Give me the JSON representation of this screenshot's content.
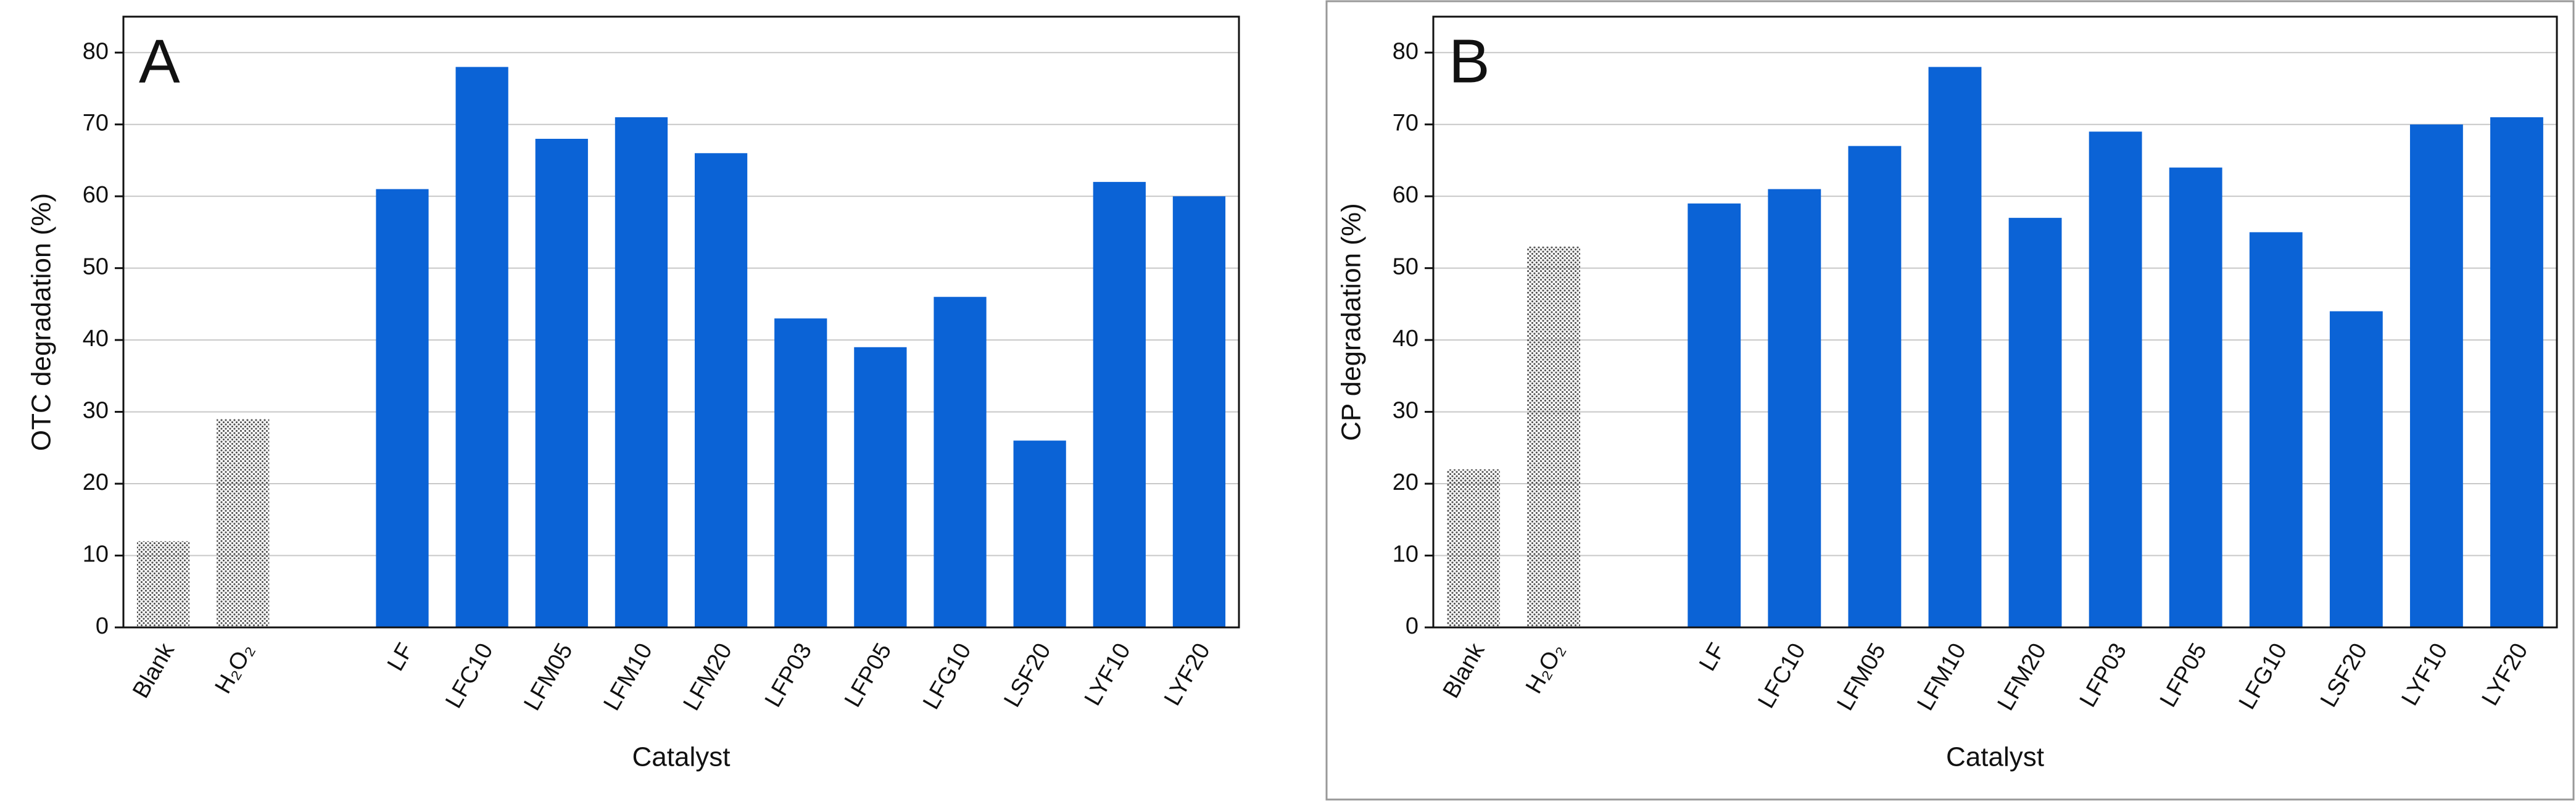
{
  "chart_data": [
    {
      "type": "bar",
      "panel_label": "A",
      "ylabel": "OTC degradation (%)",
      "xlabel": "Catalyst",
      "categories": [
        "Blank",
        "H₂O₂",
        null,
        "LF",
        "LFC10",
        "LFM05",
        "LFM10",
        "LFM20",
        "LFP03",
        "LFP05",
        "LFG10",
        "LSF20",
        "LYF10",
        "LYF20"
      ],
      "values": [
        12,
        29,
        null,
        61,
        78,
        68,
        71,
        66,
        43,
        39,
        46,
        26,
        62,
        60
      ],
      "colors": [
        "#555555",
        "#555555",
        null,
        "#0b63d6",
        "#0b63d6",
        "#0b63d6",
        "#0b63d6",
        "#0b63d6",
        "#0b63d6",
        "#0b63d6",
        "#0b63d6",
        "#0b63d6",
        "#0b63d6",
        "#0b63d6"
      ],
      "fill_styles": [
        "dotted",
        "dotted",
        null,
        "solid",
        "solid",
        "solid",
        "solid",
        "solid",
        "solid",
        "solid",
        "solid",
        "solid",
        "solid",
        "solid"
      ],
      "ylim": [
        0,
        85
      ],
      "yticks": [
        0,
        10,
        20,
        30,
        40,
        50,
        60,
        70,
        80
      ],
      "grid": true
    },
    {
      "type": "bar",
      "panel_label": "B",
      "ylabel": "CP degradation (%)",
      "xlabel": "Catalyst",
      "categories": [
        "Blank",
        "H₂O₂",
        null,
        "LF",
        "LFC10",
        "LFM05",
        "LFM10",
        "LFM20",
        "LFP03",
        "LFP05",
        "LFG10",
        "LSF20",
        "LYF10",
        "LYF20"
      ],
      "values": [
        22,
        53,
        null,
        59,
        61,
        67,
        78,
        57,
        69,
        64,
        55,
        44,
        70,
        71
      ],
      "colors": [
        "#555555",
        "#555555",
        null,
        "#0b63d6",
        "#0b63d6",
        "#0b63d6",
        "#0b63d6",
        "#0b63d6",
        "#0b63d6",
        "#0b63d6",
        "#0b63d6",
        "#0b63d6",
        "#0b63d6",
        "#0b63d6"
      ],
      "fill_styles": [
        "dotted",
        "dotted",
        null,
        "solid",
        "solid",
        "solid",
        "solid",
        "solid",
        "solid",
        "solid",
        "solid",
        "solid",
        "solid",
        "solid"
      ],
      "ylim": [
        0,
        85
      ],
      "yticks": [
        0,
        10,
        20,
        30,
        40,
        50,
        60,
        70,
        80
      ],
      "grid": true
    }
  ]
}
